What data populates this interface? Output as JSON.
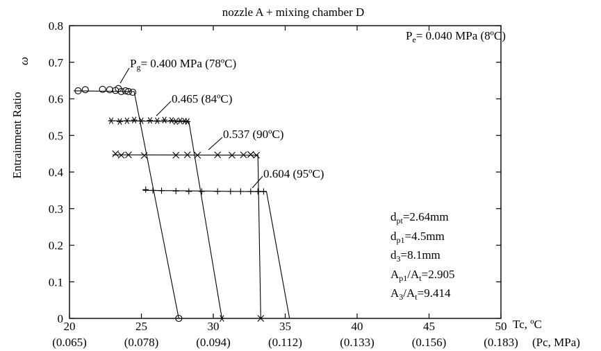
{
  "chart_data": {
    "type": "line",
    "title": "nozzle A + mixing chamber D",
    "ylabel": "Entrainment Ratio",
    "ylabel_symbol": "ω",
    "xlabel": "Tc, ºC",
    "xlabel_secondary": "(Pc, MPa)",
    "xlim": [
      20,
      50
    ],
    "ylim": [
      0,
      0.8
    ],
    "xticks": [
      20,
      25,
      30,
      35,
      40,
      45,
      50
    ],
    "xtick_labels": [
      "20",
      "25",
      "30",
      "35",
      "40",
      "45",
      "50"
    ],
    "xtick_secondary_labels": [
      "(0.065)",
      "(0.078)",
      "(0.094)",
      "(0.112)",
      "(0.133)",
      "(0.156)",
      "(0.183)"
    ],
    "yticks": [
      0,
      0.1,
      0.2,
      0.3,
      0.4,
      0.5,
      0.6,
      0.7,
      0.8
    ],
    "ytick_labels": [
      "0",
      "0.1",
      "0.2",
      "0.3",
      "0.4",
      "0.5",
      "0.6",
      "0.7",
      "0.8"
    ],
    "grid": false,
    "evaporator_label": "P",
    "evaporator_subscript": "e",
    "evaporator_value": "= 0.040 MPa (8ºC)",
    "series": [
      {
        "label": "P",
        "label_subscript": "g",
        "label_value": "= 0.400 MPa (78ºC)",
        "marker": "circle",
        "points": [
          [
            20.6,
            0.622
          ],
          [
            21.1,
            0.625
          ],
          [
            22.3,
            0.626
          ],
          [
            22.8,
            0.625
          ],
          [
            23.2,
            0.623
          ],
          [
            23.4,
            0.628
          ],
          [
            23.6,
            0.62
          ],
          [
            23.9,
            0.622
          ],
          [
            24.1,
            0.62
          ],
          [
            24.4,
            0.618
          ]
        ],
        "line": [
          [
            20.3,
            0.622
          ],
          [
            24.5,
            0.62
          ],
          [
            27.6,
            0.0
          ]
        ]
      },
      {
        "label": "0.465 (84ºC)",
        "marker": "asterisk",
        "points": [
          [
            22.9,
            0.54
          ],
          [
            23.5,
            0.538
          ],
          [
            24.0,
            0.54
          ],
          [
            24.5,
            0.542
          ],
          [
            25.0,
            0.54
          ],
          [
            25.6,
            0.541
          ],
          [
            26.1,
            0.54
          ],
          [
            26.6,
            0.542
          ],
          [
            27.1,
            0.541
          ],
          [
            27.4,
            0.538
          ],
          [
            27.7,
            0.54
          ],
          [
            28.0,
            0.539
          ],
          [
            28.2,
            0.538
          ]
        ],
        "line": [
          [
            22.7,
            0.54
          ],
          [
            28.3,
            0.538
          ],
          [
            30.6,
            0.0
          ]
        ]
      },
      {
        "label": "0.537 (90ºC)",
        "marker": "x",
        "points": [
          [
            23.2,
            0.45
          ],
          [
            23.6,
            0.446
          ],
          [
            24.1,
            0.447
          ],
          [
            25.2,
            0.445
          ],
          [
            27.4,
            0.446
          ],
          [
            28.2,
            0.447
          ],
          [
            28.9,
            0.446
          ],
          [
            30.3,
            0.447
          ],
          [
            31.3,
            0.446
          ],
          [
            32.1,
            0.447
          ],
          [
            32.6,
            0.448
          ],
          [
            33.0,
            0.446
          ]
        ],
        "line": [
          [
            23.0,
            0.447
          ],
          [
            33.1,
            0.446
          ],
          [
            33.3,
            0.0
          ]
        ]
      },
      {
        "label": "0.604 (95ºC)",
        "marker": "plus",
        "points": [
          [
            25.3,
            0.352
          ],
          [
            25.8,
            0.35
          ],
          [
            26.4,
            0.349
          ],
          [
            27.4,
            0.348
          ],
          [
            28.3,
            0.347
          ],
          [
            29.2,
            0.347
          ],
          [
            30.3,
            0.347
          ],
          [
            31.2,
            0.347
          ],
          [
            31.9,
            0.347
          ],
          [
            32.6,
            0.347
          ],
          [
            33.1,
            0.347
          ],
          [
            33.5,
            0.347
          ]
        ],
        "line": [
          [
            25.1,
            0.35
          ],
          [
            33.7,
            0.346
          ],
          [
            35.3,
            0.0
          ]
        ]
      }
    ],
    "endpoint_markers": [
      {
        "x": 27.6,
        "y": 0.0,
        "marker": "circle"
      },
      {
        "x": 30.6,
        "y": 0.0,
        "marker": "asterisk"
      },
      {
        "x": 33.3,
        "y": 0.0,
        "marker": "x"
      }
    ],
    "annotations": [
      {
        "base": "d",
        "sub": "pt",
        "rest": "=2.64mm"
      },
      {
        "base": "d",
        "sub": "p1",
        "rest": "=4.5mm"
      },
      {
        "base": "d",
        "sub": "3",
        "rest": "=8.1mm"
      },
      {
        "base": "A",
        "sub": "p1",
        "rest": "/A",
        "sub2": "t",
        "rest2": "=2.905"
      },
      {
        "base": "A",
        "sub": "3",
        "rest": "/A",
        "sub2": "t",
        "rest2": "=9.414"
      }
    ]
  }
}
